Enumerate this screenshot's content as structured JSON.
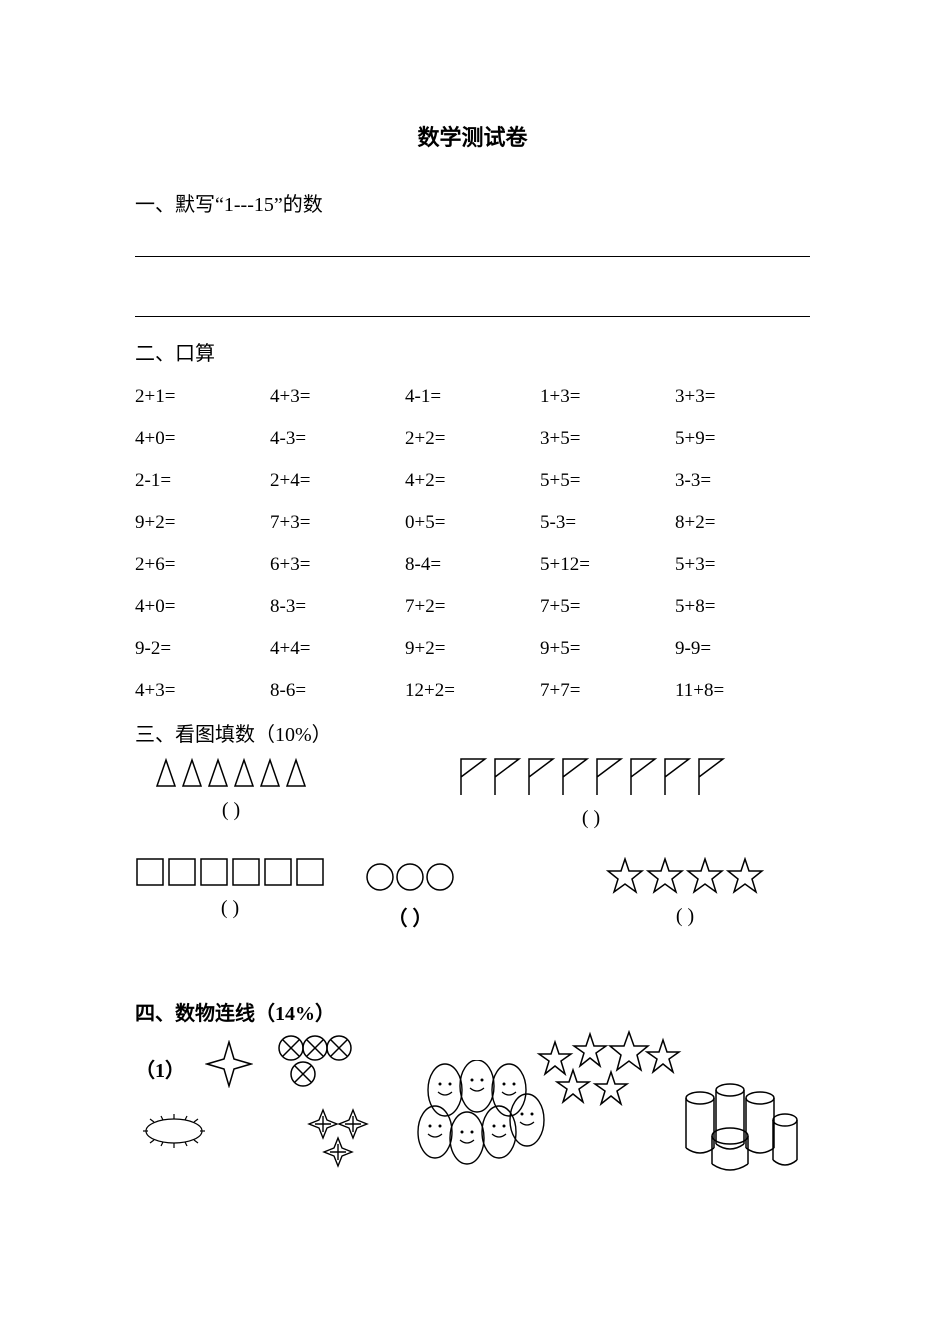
{
  "title": "数学测试卷",
  "section1": {
    "heading": "一、默写“1---15”的数"
  },
  "section2": {
    "heading": "二、口算",
    "rows": [
      [
        "2+1=",
        "4+3=",
        "4-1=",
        "1+3=",
        "3+3="
      ],
      [
        "4+0=",
        "4-3=",
        "2+2=",
        "3+5=",
        "5+9="
      ],
      [
        "2-1=",
        " 2+4=",
        " 4+2=",
        " 5+5=",
        " 3-3="
      ],
      [
        "9+2=",
        "7+3=",
        "0+5=",
        "5-3=",
        "8+2="
      ],
      [
        "2+6=",
        "6+3=",
        "8-4=",
        " 5+12=",
        "  5+3="
      ],
      [
        "4+0=",
        "8-3=",
        " 7+2=",
        " 7+5=",
        " 5+8="
      ],
      [
        "9-2=",
        " 4+4=",
        " 9+2=",
        " 9+5=",
        " 9-9="
      ],
      [
        "4+3=",
        "8-6=",
        " 12+2=",
        "  7+7=",
        "  11+8="
      ]
    ]
  },
  "section3": {
    "heading": "三、看图填数（10%）",
    "groups": [
      {
        "name": "triangles",
        "count": 6,
        "paren": "(        )"
      },
      {
        "name": "flags",
        "count": 8,
        "paren": "(                )"
      },
      {
        "name": "squares",
        "count": 6,
        "paren": "(        )"
      },
      {
        "name": "circles",
        "count": 3,
        "paren": "（        ）"
      },
      {
        "name": "stars",
        "count": 4,
        "paren": "(        )"
      }
    ]
  },
  "section4": {
    "heading": "四、数物连线（14%）",
    "label": "（1）"
  },
  "style": {
    "text_color": "#000000",
    "background": "#ffffff",
    "title_fontsize": 22,
    "body_fontsize": 20,
    "stroke": "#000000",
    "stroke_width": 1.5
  }
}
